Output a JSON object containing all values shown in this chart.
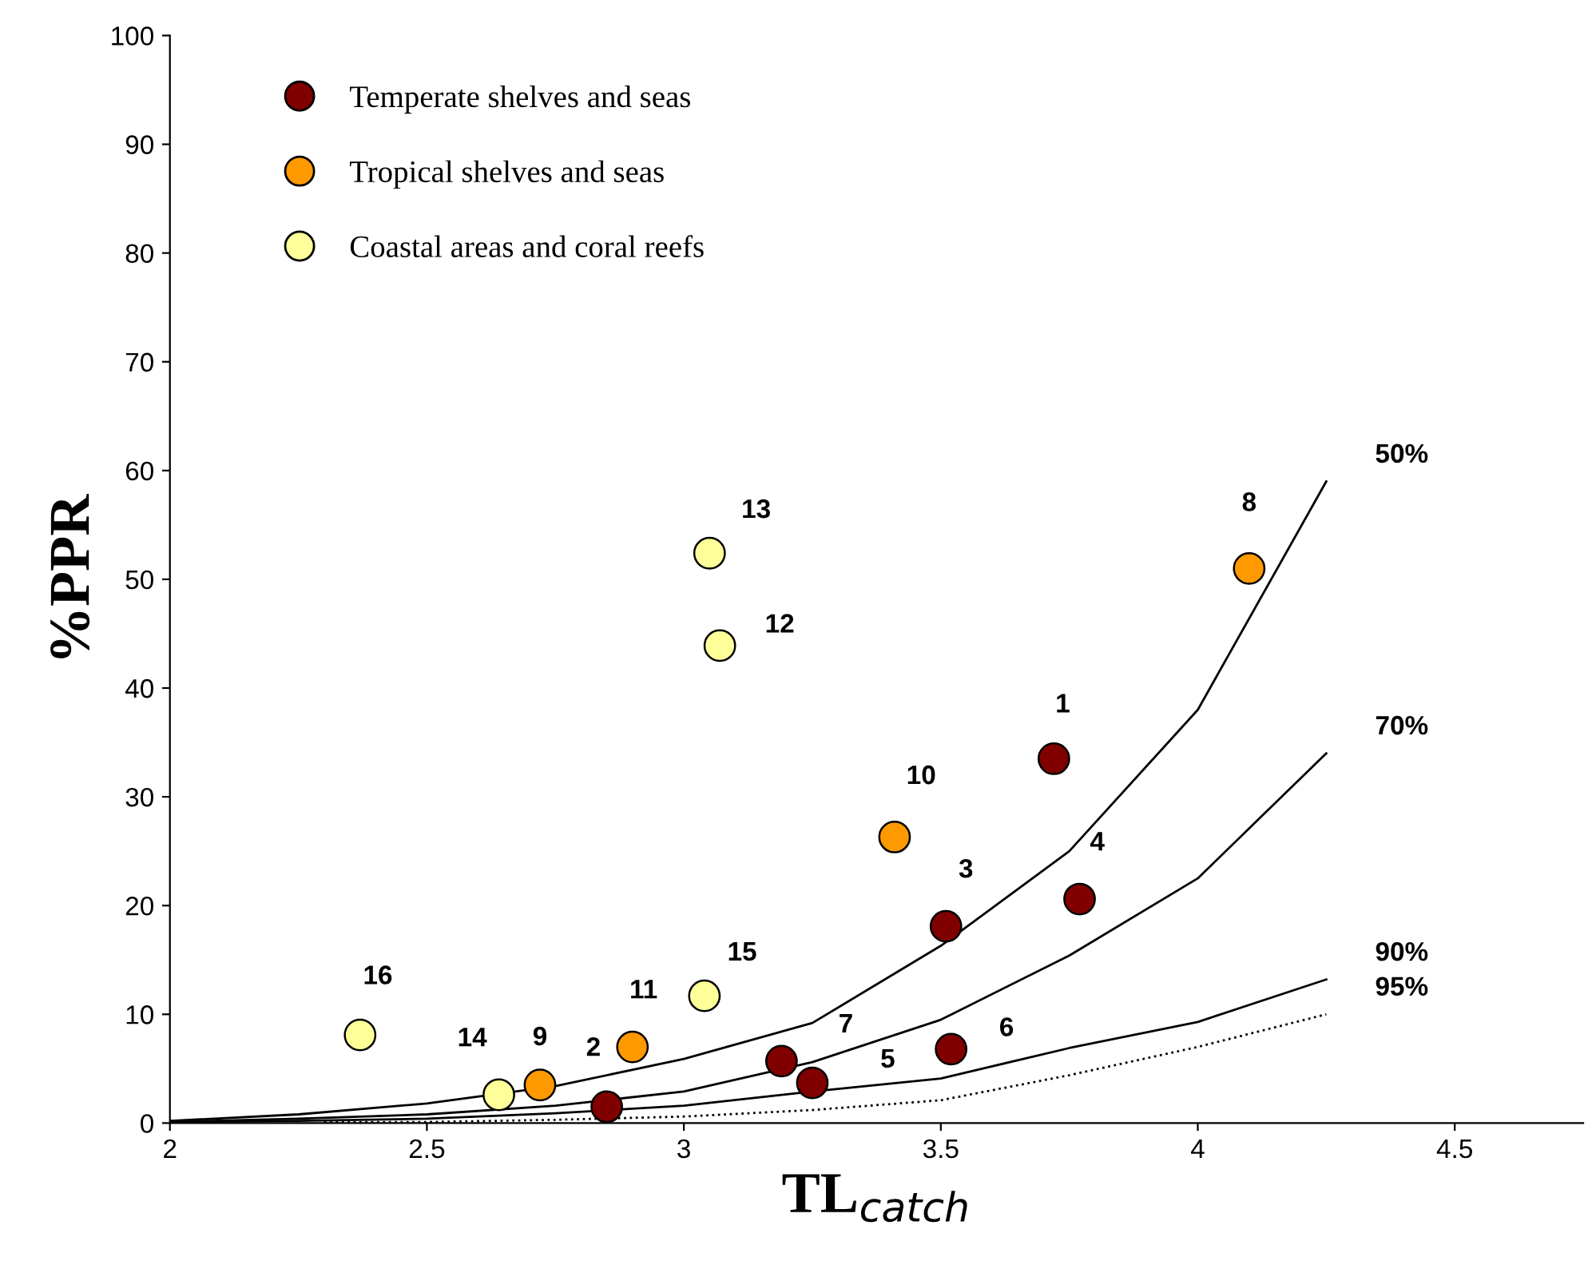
{
  "chart_data": {
    "type": "scatter",
    "xlabel": "TL$_{catch}$",
    "ylabel": "%PPR",
    "xlim": [
      2,
      4.75
    ],
    "ylim": [
      0,
      100
    ],
    "xticks": [
      2,
      {
        "value": 2.5,
        "label": "2.5"
      },
      3,
      {
        "value": 3.5,
        "label": "3.5"
      },
      4,
      {
        "value": 4.5,
        "label": "4.5"
      }
    ],
    "yticks": [
      0,
      10,
      20,
      30,
      40,
      50,
      60,
      70,
      80,
      90,
      100
    ],
    "grid": false,
    "legend": "top left",
    "annotations": [
      {
        "text": "1",
        "x": 3.72,
        "y": 33.5
      },
      {
        "text": "2",
        "x": 2.85,
        "y": 1.5
      },
      {
        "text": "3",
        "x": 3.51,
        "y": 18.1
      },
      {
        "text": "4",
        "x": 3.77,
        "y": 20.6
      },
      {
        "text": "5",
        "x": 3.25,
        "y": 3.7
      },
      {
        "text": "6",
        "x": 3.52,
        "y": 6.8
      },
      {
        "text": "7",
        "x": 3.19,
        "y": 5.7
      },
      {
        "text": "8",
        "x": 4.1,
        "y": 51.0
      },
      {
        "text": "9",
        "x": 2.72,
        "y": 3.5
      },
      {
        "text": "10",
        "x": 3.41,
        "y": 26.3
      },
      {
        "text": "11",
        "x": 2.9,
        "y": 7.0
      },
      {
        "text": "12",
        "x": 3.07,
        "y": 43.9
      },
      {
        "text": "13",
        "x": 3.05,
        "y": 52.4
      },
      {
        "text": "14",
        "x": 2.64,
        "y": 2.6
      },
      {
        "text": "15",
        "x": 3.04,
        "y": 11.7
      },
      {
        "text": "16",
        "x": 2.37,
        "y": 8.1
      }
    ],
    "series": [
      {
        "name": "Temperate shelves and seas",
        "color": "#800000",
        "x": [
          3.72,
          2.85,
          3.51,
          3.77,
          3.25,
          3.52,
          3.19
        ],
        "values": [
          33.5,
          1.5,
          18.1,
          20.6,
          3.7,
          6.8,
          5.7
        ],
        "marker": "circle"
      },
      {
        "name": "Tropical shelves and seas",
        "color": "#ff9900",
        "x": [
          4.1,
          2.72,
          3.41,
          2.9
        ],
        "values": [
          51.0,
          3.5,
          26.3,
          7.0
        ],
        "marker": "circle"
      },
      {
        "name": "Coastal areas and coral reefs",
        "color": "#ffff99",
        "x": [
          3.07,
          3.05,
          2.64,
          3.04,
          2.37
        ],
        "values": [
          43.9,
          52.4,
          2.6,
          11.7,
          8.1
        ],
        "marker": "circle"
      },
      {
        "type": "line",
        "name": "50%",
        "color": "#000000",
        "line_style": "solid",
        "x": [
          2,
          2.25,
          2.5,
          2.75,
          3,
          3.25,
          3.5,
          3.75,
          4,
          4.25
        ],
        "values": [
          0.2,
          0.8,
          1.8,
          3.4,
          5.9,
          9.2,
          16.3,
          25,
          38,
          59
        ]
      },
      {
        "type": "line",
        "name": "70%",
        "color": "#000000",
        "line_style": "solid",
        "x": [
          2,
          2.25,
          2.5,
          2.75,
          3,
          3.25,
          3.5,
          3.75,
          4,
          4.25
        ],
        "values": [
          0.1,
          0.4,
          0.8,
          1.6,
          2.9,
          5.6,
          9.5,
          15.4,
          22.5,
          34
        ]
      },
      {
        "type": "line",
        "name": "90%",
        "color": "#000000",
        "line_style": "solid",
        "x": [
          2,
          2.25,
          2.5,
          2.75,
          3,
          3.25,
          3.5,
          3.75,
          4,
          4.25
        ],
        "values": [
          0.1,
          0.2,
          0.4,
          0.9,
          1.6,
          2.9,
          4.1,
          6.9,
          9.3,
          13.2
        ]
      },
      {
        "type": "line",
        "name": "95%",
        "color": "#000000",
        "line_style": "dotted",
        "x": [
          2.3,
          2.5,
          2.75,
          3,
          3.25,
          3.5,
          3.75,
          4,
          4.25
        ],
        "values": [
          0.1,
          0.1,
          0.3,
          0.6,
          1.2,
          2.1,
          4.4,
          7,
          10
        ]
      }
    ]
  }
}
